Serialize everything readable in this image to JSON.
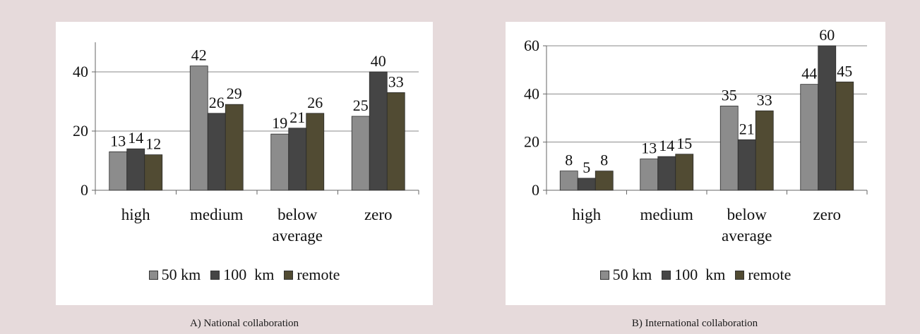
{
  "chart_data": [
    {
      "type": "bar",
      "caption": "A) National collaboration",
      "categories": [
        "high",
        "medium",
        "below average",
        "zero"
      ],
      "series": [
        {
          "name": "50 km",
          "values": [
            13,
            42,
            19,
            25
          ],
          "color": "#8c8c8c"
        },
        {
          "name": "100  km",
          "values": [
            14,
            26,
            21,
            40
          ],
          "color": "#454545"
        },
        {
          "name": "remote",
          "values": [
            12,
            29,
            26,
            33
          ],
          "color": "#514b33"
        }
      ],
      "yticks": [
        0,
        20,
        40
      ],
      "ylim": [
        0,
        50
      ],
      "grid": true,
      "legend": "bottom"
    },
    {
      "type": "bar",
      "caption": "B) International collaboration",
      "categories": [
        "high",
        "medium",
        "below average",
        "zero"
      ],
      "series": [
        {
          "name": "50 km",
          "values": [
            8,
            13,
            35,
            44
          ],
          "color": "#8c8c8c"
        },
        {
          "name": "100  km",
          "values": [
            5,
            14,
            21,
            60
          ],
          "color": "#454545"
        },
        {
          "name": "remote",
          "values": [
            8,
            15,
            33,
            45
          ],
          "color": "#514b33"
        }
      ],
      "yticks": [
        0,
        20,
        40,
        60
      ],
      "ylim": [
        0,
        60
      ],
      "grid": true,
      "legend": "bottom"
    }
  ]
}
